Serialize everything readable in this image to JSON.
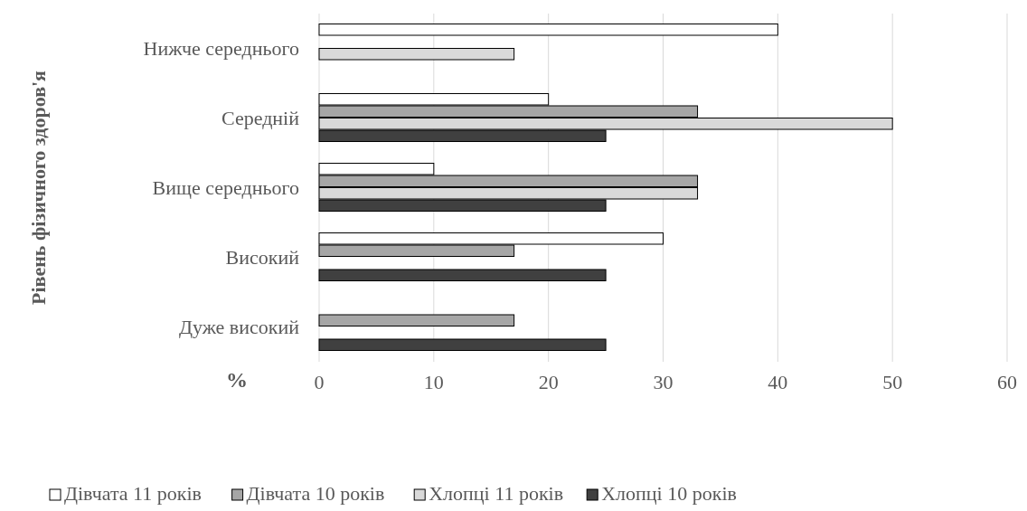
{
  "chart_data": {
    "type": "bar",
    "orientation": "horizontal",
    "ylabel": "Рівень фізичного здоров'я",
    "xlabel": "%",
    "categories": [
      "Нижче середнього",
      "Середній",
      "Вище середнього",
      "Високий",
      "Дуже високий"
    ],
    "series": [
      {
        "name": "Дівчата 11 років",
        "color": "#ffffff",
        "values": [
          40,
          20,
          10,
          30,
          null
        ]
      },
      {
        "name": "Дівчата 10 років",
        "color": "#a6a6a6",
        "values": [
          null,
          33,
          33,
          17,
          17
        ]
      },
      {
        "name": "Хлопці 11 років",
        "color": "#d9d9d9",
        "values": [
          17,
          50,
          33,
          null,
          null
        ]
      },
      {
        "name": "Хлопці 10 років",
        "color": "#404040",
        "values": [
          null,
          25,
          25,
          25,
          25
        ]
      }
    ],
    "xlim": [
      0,
      60
    ],
    "xticks": [
      0,
      10,
      20,
      30,
      40,
      50,
      60
    ],
    "grid": "x",
    "legend": "bottom"
  }
}
